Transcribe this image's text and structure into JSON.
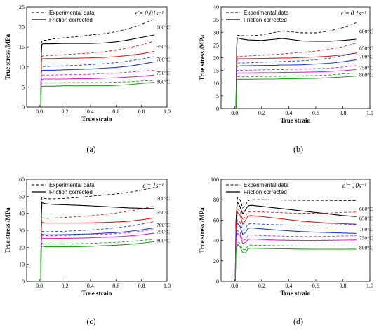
{
  "figure": {
    "legend": {
      "dashed": "Experimental data",
      "solid": "Friction corrected"
    },
    "series_colors": {
      "600": "#000000",
      "650": "#e31a1c",
      "700": "#1f3fd0",
      "750": "#e020c0",
      "800": "#1aa01a"
    }
  },
  "chart_data": [
    {
      "type": "line",
      "panel_label": "(a)",
      "rate_label": "ε̇ = 0.01s⁻¹",
      "xlabel": "True strain",
      "ylabel": "True stress /MPa",
      "xlim": [
        -0.1,
        1.0
      ],
      "ylim": [
        0,
        25
      ],
      "xticks": [
        0.0,
        0.2,
        0.4,
        0.6,
        0.8,
        1.0
      ],
      "yticks": [
        0,
        5,
        10,
        15,
        20,
        25
      ],
      "x": [
        0.01,
        0.015,
        0.02,
        0.03,
        0.05,
        0.1,
        0.2,
        0.3,
        0.4,
        0.5,
        0.6,
        0.7,
        0.8,
        0.9
      ],
      "series": [
        {
          "name": "600°C",
          "style": "dashed",
          "color_key": "600",
          "values": [
            0,
            14.5,
            16.6,
            16.7,
            16.7,
            17.0,
            17.3,
            17.6,
            18.0,
            18.3,
            18.8,
            19.6,
            20.7,
            22.0
          ]
        },
        {
          "name": "600°C",
          "style": "solid",
          "color_key": "600",
          "values": [
            0,
            13.5,
            15.7,
            15.8,
            15.8,
            15.8,
            15.9,
            15.9,
            15.9,
            16.0,
            16.3,
            16.8,
            17.4,
            18.0
          ]
        },
        {
          "name": "650°C",
          "style": "dashed",
          "color_key": "650",
          "values": [
            0,
            11.5,
            12.7,
            12.8,
            12.8,
            12.9,
            13.1,
            13.3,
            13.5,
            13.8,
            14.2,
            14.8,
            15.5,
            16.5
          ]
        },
        {
          "name": "650°C",
          "style": "solid",
          "color_key": "650",
          "values": [
            0,
            11.0,
            12.0,
            12.1,
            12.1,
            12.1,
            12.2,
            12.2,
            12.3,
            12.4,
            12.6,
            12.9,
            13.3,
            13.9
          ]
        },
        {
          "name": "700°C",
          "style": "dashed",
          "color_key": "700",
          "values": [
            0,
            9.5,
            10.0,
            10.1,
            10.1,
            10.2,
            10.3,
            10.4,
            10.6,
            10.8,
            11.1,
            11.5,
            12.0,
            12.6
          ]
        },
        {
          "name": "700°C",
          "style": "solid",
          "color_key": "700",
          "values": [
            0,
            8.5,
            9.1,
            9.2,
            9.2,
            9.2,
            9.3,
            9.4,
            9.5,
            9.7,
            9.9,
            10.2,
            10.7,
            11.3
          ]
        },
        {
          "name": "750°C",
          "style": "dashed",
          "color_key": "750",
          "values": [
            0,
            7.6,
            7.9,
            8.0,
            8.0,
            8.0,
            8.1,
            8.1,
            8.2,
            8.4,
            8.5,
            8.7,
            9.0,
            9.2
          ]
        },
        {
          "name": "750°C",
          "style": "solid",
          "color_key": "750",
          "values": [
            0,
            6.5,
            6.9,
            7.0,
            7.0,
            7.0,
            7.0,
            7.1,
            7.1,
            7.2,
            7.3,
            7.5,
            7.7,
            8.0
          ]
        },
        {
          "name": "800°C",
          "style": "dashed",
          "color_key": "800",
          "values": [
            0,
            5.8,
            6.0,
            6.0,
            6.0,
            6.0,
            6.1,
            6.1,
            6.1,
            6.1,
            6.2,
            6.3,
            6.5,
            6.6
          ]
        },
        {
          "name": "800°C",
          "style": "solid",
          "color_key": "800",
          "values": [
            0,
            4.8,
            5.1,
            5.2,
            5.2,
            5.2,
            5.3,
            5.3,
            5.3,
            5.3,
            5.4,
            5.6,
            5.9,
            6.2
          ]
        }
      ]
    },
    {
      "type": "line",
      "panel_label": "(b)",
      "rate_label": "ε̇ = 0.1s⁻¹",
      "xlabel": "True strain",
      "ylabel": "True stress /MPa",
      "xlim": [
        -0.1,
        1.0
      ],
      "ylim": [
        0,
        40
      ],
      "xticks": [
        0.0,
        0.2,
        0.4,
        0.6,
        0.8,
        1.0
      ],
      "yticks": [
        0,
        5,
        10,
        15,
        20,
        25,
        30,
        35,
        40
      ],
      "x": [
        0.01,
        0.015,
        0.02,
        0.03,
        0.05,
        0.1,
        0.2,
        0.3,
        0.35,
        0.4,
        0.5,
        0.6,
        0.7,
        0.8,
        0.9
      ],
      "series": [
        {
          "name": "600°C",
          "style": "dashed",
          "color_key": "600",
          "values": [
            0,
            25.0,
            28.8,
            28.8,
            28.7,
            28.6,
            29.0,
            30.0,
            30.5,
            30.3,
            29.8,
            29.8,
            30.5,
            31.8,
            33.8
          ]
        },
        {
          "name": "600°C",
          "style": "solid",
          "color_key": "600",
          "values": [
            0,
            24.0,
            27.8,
            27.7,
            27.4,
            27.0,
            26.8,
            27.3,
            27.6,
            27.3,
            26.6,
            26.5,
            26.5,
            26.8,
            27.3
          ]
        },
        {
          "name": "650°C",
          "style": "dashed",
          "color_key": "650",
          "values": [
            0,
            18.0,
            20.5,
            20.6,
            20.6,
            20.7,
            21.0,
            21.3,
            21.5,
            21.7,
            22.1,
            22.6,
            23.3,
            24.3,
            25.8
          ]
        },
        {
          "name": "650°C",
          "style": "solid",
          "color_key": "650",
          "values": [
            0,
            17.5,
            19.5,
            19.6,
            19.6,
            19.6,
            19.7,
            19.8,
            19.9,
            19.9,
            20.1,
            20.3,
            20.6,
            21.1,
            21.8
          ]
        },
        {
          "name": "700°C",
          "style": "dashed",
          "color_key": "700",
          "values": [
            0,
            16.0,
            17.8,
            17.9,
            17.9,
            18.0,
            18.2,
            18.4,
            18.5,
            18.6,
            18.8,
            19.2,
            19.8,
            20.8,
            22.0
          ]
        },
        {
          "name": "700°C",
          "style": "solid",
          "color_key": "700",
          "values": [
            0,
            15.5,
            16.6,
            16.7,
            16.8,
            16.8,
            16.9,
            17.0,
            17.1,
            17.1,
            17.2,
            17.5,
            17.8,
            18.4,
            19.2
          ]
        },
        {
          "name": "750°C",
          "style": "dashed",
          "color_key": "750",
          "values": [
            0,
            14.0,
            15.0,
            15.0,
            15.0,
            15.1,
            15.2,
            15.3,
            15.3,
            15.4,
            15.5,
            15.7,
            15.9,
            16.3,
            16.9
          ]
        },
        {
          "name": "750°C",
          "style": "solid",
          "color_key": "750",
          "values": [
            0,
            13.0,
            14.0,
            14.0,
            14.0,
            14.0,
            14.1,
            14.1,
            14.2,
            14.2,
            14.3,
            14.4,
            14.6,
            14.9,
            15.3
          ]
        },
        {
          "name": "800°C",
          "style": "dashed",
          "color_key": "800",
          "values": [
            0,
            11.8,
            12.5,
            12.5,
            12.5,
            12.5,
            12.6,
            12.7,
            12.7,
            12.8,
            12.9,
            13.0,
            13.2,
            13.6,
            14.0
          ]
        },
        {
          "name": "800°C",
          "style": "solid",
          "color_key": "800",
          "values": [
            0,
            11.0,
            11.5,
            11.5,
            11.5,
            11.5,
            11.6,
            11.6,
            11.7,
            11.7,
            11.8,
            11.9,
            12.1,
            12.4,
            12.8
          ]
        }
      ]
    },
    {
      "type": "line",
      "panel_label": "(c)",
      "rate_label": "ε̇ = 1s⁻¹",
      "xlabel": "True strain",
      "ylabel": "True stress /MPa",
      "xlim": [
        -0.1,
        1.0
      ],
      "ylim": [
        0,
        60
      ],
      "xticks": [
        0.0,
        0.2,
        0.4,
        0.6,
        0.8,
        1.0
      ],
      "yticks": [
        0,
        10,
        20,
        30,
        40,
        50,
        60
      ],
      "x": [
        0.01,
        0.015,
        0.02,
        0.03,
        0.05,
        0.1,
        0.2,
        0.3,
        0.4,
        0.5,
        0.6,
        0.7,
        0.8,
        0.9
      ],
      "series": [
        {
          "name": "600°C",
          "style": "dashed",
          "color_key": "600",
          "values": [
            0,
            40.0,
            49.5,
            49.0,
            48.6,
            48.5,
            48.8,
            49.3,
            50.0,
            50.7,
            51.4,
            52.3,
            53.6,
            55.2
          ]
        },
        {
          "name": "600°C",
          "style": "solid",
          "color_key": "600",
          "values": [
            0,
            38.0,
            46.5,
            46.0,
            45.6,
            45.3,
            45.0,
            44.7,
            44.4,
            44.0,
            43.6,
            43.2,
            43.0,
            42.8
          ]
        },
        {
          "name": "650°C",
          "style": "dashed",
          "color_key": "650",
          "values": [
            0,
            33.0,
            37.5,
            37.2,
            37.0,
            37.2,
            37.6,
            38.0,
            38.6,
            39.3,
            40.2,
            41.3,
            42.7,
            44.2
          ]
        },
        {
          "name": "650°C",
          "style": "solid",
          "color_key": "650",
          "values": [
            0,
            31.0,
            34.8,
            34.5,
            34.3,
            34.3,
            34.3,
            34.3,
            34.4,
            34.6,
            34.9,
            35.4,
            36.2,
            37.3
          ]
        },
        {
          "name": "700°C",
          "style": "dashed",
          "color_key": "700",
          "values": [
            0,
            27.0,
            29.5,
            29.3,
            29.2,
            29.3,
            29.5,
            29.8,
            30.2,
            30.8,
            31.5,
            32.4,
            33.6,
            35.2
          ]
        },
        {
          "name": "700°C",
          "style": "solid",
          "color_key": "700",
          "values": [
            0,
            25.0,
            27.8,
            27.5,
            27.4,
            27.4,
            27.5,
            27.7,
            27.9,
            28.3,
            28.7,
            29.4,
            30.3,
            31.5
          ]
        },
        {
          "name": "750°C",
          "style": "dashed",
          "color_key": "750",
          "values": [
            0,
            25.0,
            27.2,
            27.0,
            26.9,
            26.9,
            27.0,
            27.2,
            27.4,
            27.7,
            28.1,
            28.7,
            29.5,
            30.6
          ]
        },
        {
          "name": "750°C",
          "style": "solid",
          "color_key": "750",
          "values": [
            0,
            24.0,
            25.5,
            25.3,
            25.2,
            25.2,
            25.3,
            25.4,
            25.6,
            25.9,
            26.2,
            26.7,
            27.4,
            28.3
          ]
        },
        {
          "name": "800°C",
          "style": "dashed",
          "color_key": "800",
          "values": [
            0,
            20.0,
            22.5,
            22.2,
            22.0,
            22.0,
            22.0,
            22.1,
            22.3,
            22.6,
            22.9,
            23.4,
            24.0,
            24.8
          ]
        },
        {
          "name": "800°C",
          "style": "solid",
          "color_key": "800",
          "values": [
            0,
            19.0,
            20.8,
            20.5,
            20.3,
            20.3,
            20.3,
            20.4,
            20.6,
            20.9,
            21.2,
            21.7,
            22.4,
            23.3
          ]
        }
      ]
    },
    {
      "type": "line",
      "panel_label": "(d)",
      "rate_label": "ε̇ = 10s⁻¹",
      "xlabel": "True strain",
      "ylabel": "True stress /MPa",
      "xlim": [
        -0.1,
        1.0
      ],
      "ylim": [
        0,
        100
      ],
      "xticks": [
        0.0,
        0.2,
        0.4,
        0.6,
        0.8,
        1.0
      ],
      "yticks": [
        0,
        20,
        40,
        60,
        80,
        100
      ],
      "x": [
        0.005,
        0.01,
        0.02,
        0.04,
        0.06,
        0.08,
        0.1,
        0.12,
        0.2,
        0.3,
        0.4,
        0.5,
        0.6,
        0.7,
        0.8,
        0.9
      ],
      "series": [
        {
          "name": "600°C",
          "style": "dashed",
          "color_key": "600",
          "values": [
            0,
            60,
            82,
            80,
            72,
            75,
            79,
            80,
            80,
            79.8,
            79.6,
            79.4,
            79.3,
            79.3,
            79.2,
            79.2
          ]
        },
        {
          "name": "600°C",
          "style": "solid",
          "color_key": "600",
          "values": [
            0,
            58,
            78,
            73,
            66,
            70,
            74,
            74.5,
            73.5,
            72.0,
            70.5,
            69.0,
            67.5,
            66.0,
            64.5,
            63.5
          ]
        },
        {
          "name": "650°C",
          "style": "dashed",
          "color_key": "650",
          "values": [
            0,
            52,
            71,
            69,
            60,
            64,
            68,
            68.5,
            68.0,
            67.5,
            67.0,
            66.8,
            66.8,
            67.0,
            67.5,
            68.0
          ]
        },
        {
          "name": "650°C",
          "style": "solid",
          "color_key": "650",
          "values": [
            0,
            50,
            68,
            65,
            56,
            60,
            64,
            64.5,
            63.5,
            62.0,
            60.5,
            59.0,
            58.0,
            57.0,
            56.5,
            56.0
          ]
        },
        {
          "name": "700°C",
          "style": "dashed",
          "color_key": "700",
          "values": [
            0,
            45,
            60,
            58,
            50,
            52,
            56,
            56.5,
            56.0,
            55.5,
            55.2,
            55.0,
            55.0,
            55.2,
            55.5,
            55.8
          ]
        },
        {
          "name": "700°C",
          "style": "solid",
          "color_key": "700",
          "values": [
            0,
            42,
            57,
            54,
            46,
            48,
            52,
            52.5,
            51.5,
            50.5,
            49.5,
            48.8,
            48.2,
            47.8,
            47.4,
            47.0
          ]
        },
        {
          "name": "750°C",
          "style": "dashed",
          "color_key": "750",
          "values": [
            0,
            40,
            50,
            48,
            40,
            41,
            45,
            45.5,
            45.0,
            44.5,
            44.2,
            44.0,
            44.0,
            44.2,
            44.5,
            44.8
          ]
        },
        {
          "name": "750°C",
          "style": "solid",
          "color_key": "750",
          "values": [
            0,
            38,
            47,
            45,
            37,
            38,
            41,
            41.5,
            41.0,
            40.5,
            40.2,
            40.0,
            40.0,
            40.2,
            40.4,
            40.6
          ]
        },
        {
          "name": "800°C",
          "style": "dashed",
          "color_key": "800",
          "values": [
            0,
            30,
            39,
            37,
            31,
            31,
            35,
            35.5,
            35.3,
            35.0,
            34.8,
            34.6,
            34.5,
            34.5,
            34.5,
            34.6
          ]
        },
        {
          "name": "800°C",
          "style": "solid",
          "color_key": "800",
          "values": [
            0,
            28,
            36,
            34,
            28,
            28,
            32,
            32.5,
            32.2,
            32.0,
            31.8,
            31.6,
            31.5,
            31.5,
            31.5,
            31.6
          ]
        }
      ]
    }
  ]
}
